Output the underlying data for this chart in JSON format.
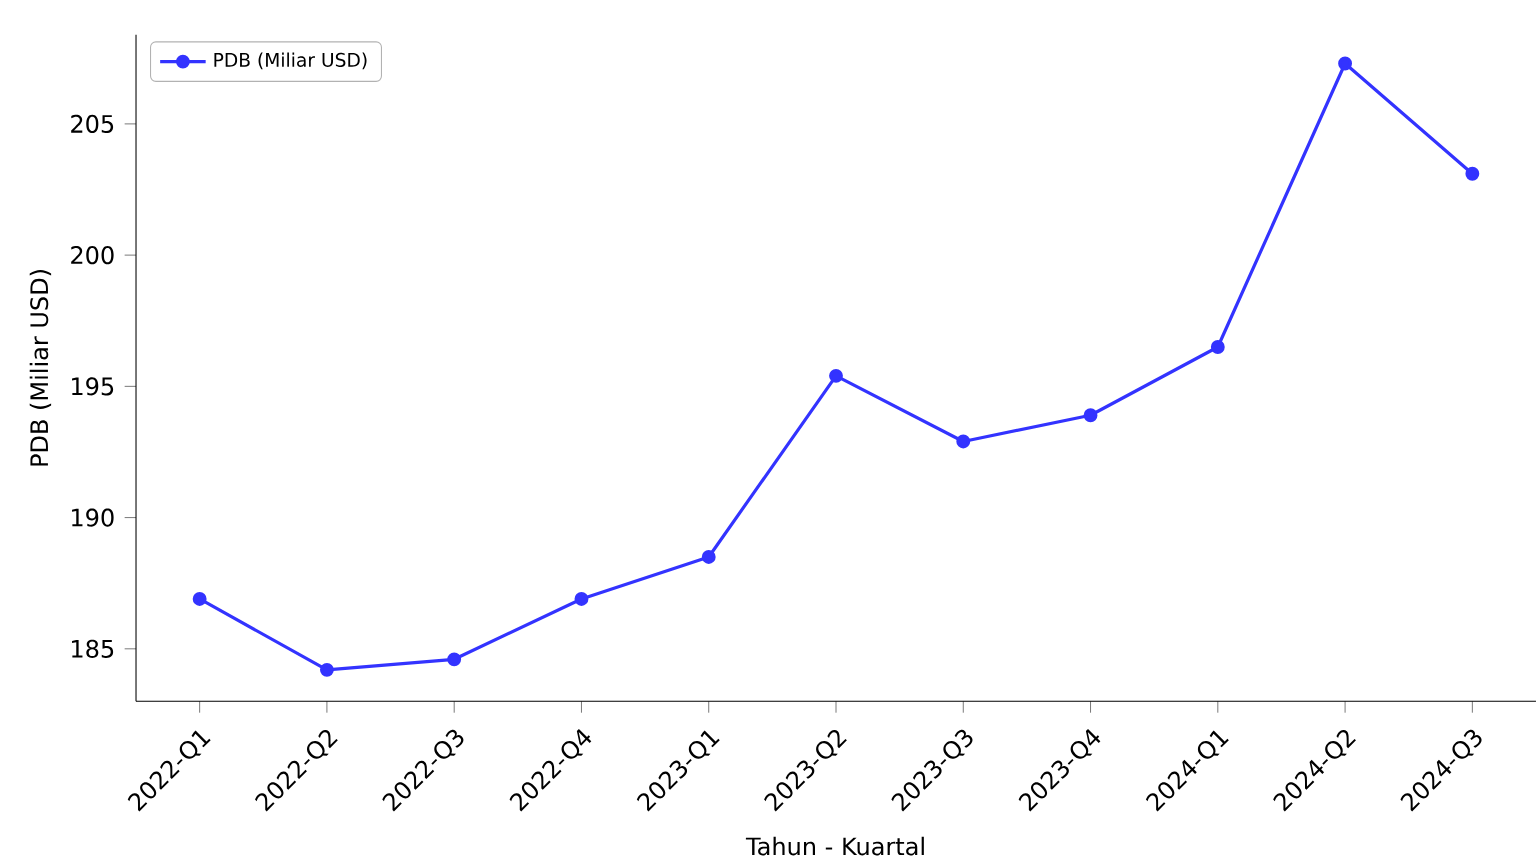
{
  "chart_data": {
    "type": "line",
    "xlabel": "Tahun - Kuartal",
    "ylabel": "PDB (Miliar USD)",
    "categories": [
      "2022-Q1",
      "2022-Q2",
      "2022-Q3",
      "2022-Q4",
      "2023-Q1",
      "2023-Q2",
      "2023-Q3",
      "2023-Q4",
      "2024-Q1",
      "2024-Q2",
      "2024-Q3"
    ],
    "series": [
      {
        "name": "PDB (Miliar USD)",
        "color": "#3333ff",
        "values": [
          186.9,
          184.2,
          184.6,
          186.9,
          188.5,
          195.4,
          192.9,
          193.9,
          196.5,
          207.3,
          203.1
        ]
      }
    ],
    "ylim": [
      183.0,
      208.4
    ],
    "yticks": [
      185,
      190,
      195,
      200,
      205
    ],
    "marker": "circle",
    "line_style": "solid",
    "legend": "top left",
    "grid": false
  }
}
